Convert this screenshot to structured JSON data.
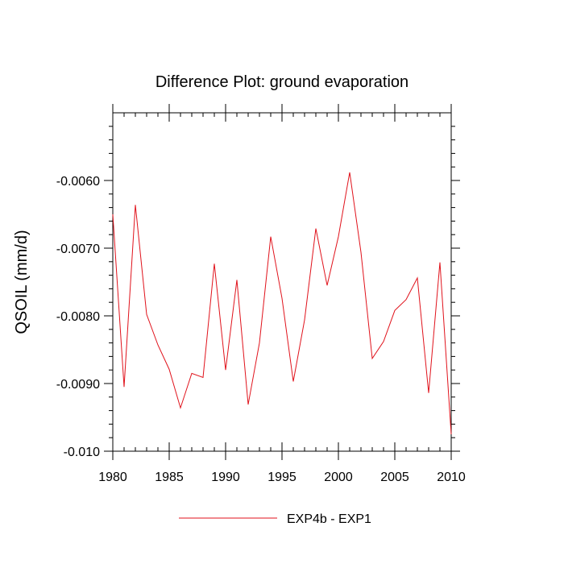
{
  "chart_data": {
    "type": "line",
    "title": "Difference Plot: ground evaporation",
    "ylabel": "QSOIL  (mm/d)",
    "xlabel": "",
    "xlim": [
      1980,
      2010
    ],
    "ylim": [
      -0.01,
      -0.005
    ],
    "x_ticks": [
      1980,
      1985,
      1990,
      1995,
      2000,
      2005,
      2010
    ],
    "x_tick_labels": [
      "1980",
      "1985",
      "1990",
      "1995",
      "2000",
      "2005",
      "2010"
    ],
    "y_ticks": [
      -0.01,
      -0.009,
      -0.008,
      -0.007,
      -0.006
    ],
    "y_tick_labels": [
      "-0.010",
      "-0.0090",
      "-0.0080",
      "-0.0070",
      "-0.0060"
    ],
    "grid": false,
    "legend_position": "bottom-center",
    "series": [
      {
        "name": "EXP4b - EXP1",
        "color": "#e0121b",
        "x": [
          1980,
          1981,
          1982,
          1983,
          1984,
          1985,
          1986,
          1987,
          1988,
          1989,
          1990,
          1991,
          1992,
          1993,
          1994,
          1995,
          1996,
          1997,
          1998,
          1999,
          2000,
          2001,
          2002,
          2003,
          2004,
          2005,
          2006,
          2007,
          2008,
          2009,
          2010
        ],
        "y": [
          -0.0065,
          -0.00905,
          -0.00636,
          -0.00798,
          -0.00843,
          -0.00879,
          -0.00936,
          -0.00885,
          -0.00891,
          -0.00723,
          -0.0088,
          -0.00747,
          -0.00931,
          -0.0084,
          -0.00683,
          -0.00774,
          -0.00897,
          -0.00806,
          -0.00671,
          -0.00755,
          -0.00683,
          -0.00588,
          -0.00706,
          -0.00863,
          -0.00838,
          -0.00792,
          -0.00776,
          -0.00744,
          -0.00914,
          -0.00721,
          -0.00975
        ]
      }
    ]
  }
}
